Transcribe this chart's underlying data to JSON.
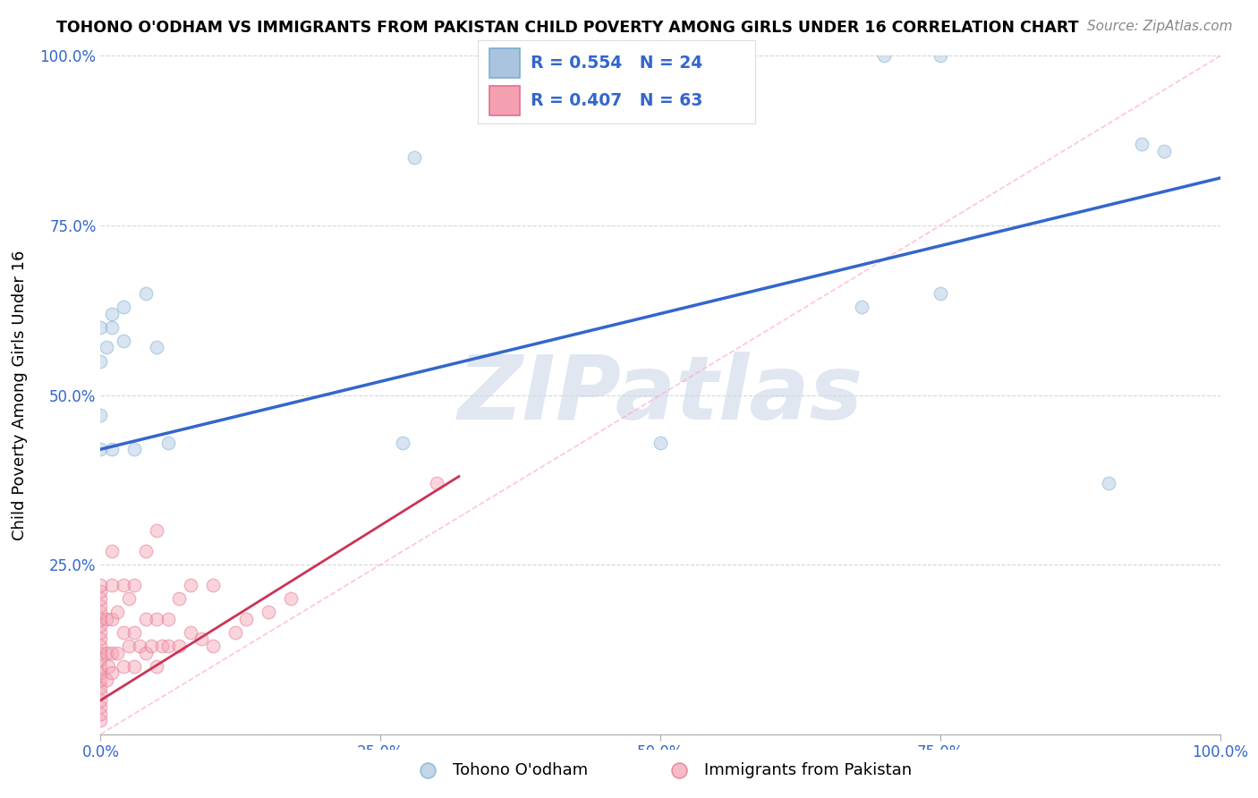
{
  "title": "TOHONO O'ODHAM VS IMMIGRANTS FROM PAKISTAN CHILD POVERTY AMONG GIRLS UNDER 16 CORRELATION CHART",
  "source": "Source: ZipAtlas.com",
  "ylabel": "Child Poverty Among Girls Under 16",
  "background_color": "#ffffff",
  "grid_color": "#cccccc",
  "watermark": "ZIPatlas",
  "tohono_color": "#aac4e0",
  "pakistan_color": "#f4a0b0",
  "tohono_edge": "#7aaed0",
  "pakistan_edge": "#e07090",
  "trend_blue": "#3366cc",
  "trend_pink": "#cc3355",
  "trend_gray": "#cccccc",
  "legend_blue_text": "#3366cc",
  "tick_color": "#3366cc",
  "tohono_R": 0.554,
  "tohono_N": 24,
  "pakistan_R": 0.407,
  "pakistan_N": 63,
  "tohono_points_x": [
    0.0,
    0.0,
    0.0,
    0.0,
    0.005,
    0.01,
    0.01,
    0.01,
    0.02,
    0.02,
    0.03,
    0.04,
    0.05,
    0.06,
    0.27,
    0.28,
    0.5,
    0.68,
    0.7,
    0.75,
    0.75,
    0.9,
    0.93,
    0.95
  ],
  "tohono_points_y": [
    0.42,
    0.47,
    0.55,
    0.6,
    0.57,
    0.6,
    0.62,
    0.42,
    0.58,
    0.63,
    0.42,
    0.65,
    0.57,
    0.43,
    0.43,
    0.85,
    0.43,
    0.63,
    1.0,
    1.0,
    0.65,
    0.37,
    0.87,
    0.86
  ],
  "pakistan_points_x": [
    0.0,
    0.0,
    0.0,
    0.0,
    0.0,
    0.0,
    0.0,
    0.0,
    0.0,
    0.0,
    0.0,
    0.0,
    0.0,
    0.0,
    0.0,
    0.0,
    0.0,
    0.0,
    0.0,
    0.0,
    0.0,
    0.005,
    0.005,
    0.005,
    0.007,
    0.01,
    0.01,
    0.01,
    0.01,
    0.01,
    0.015,
    0.015,
    0.02,
    0.02,
    0.02,
    0.025,
    0.025,
    0.03,
    0.03,
    0.03,
    0.035,
    0.04,
    0.04,
    0.04,
    0.045,
    0.05,
    0.05,
    0.05,
    0.055,
    0.06,
    0.06,
    0.07,
    0.07,
    0.08,
    0.08,
    0.09,
    0.1,
    0.1,
    0.12,
    0.13,
    0.15,
    0.17,
    0.3
  ],
  "pakistan_points_y": [
    0.02,
    0.03,
    0.04,
    0.05,
    0.06,
    0.07,
    0.08,
    0.09,
    0.1,
    0.11,
    0.12,
    0.13,
    0.14,
    0.15,
    0.16,
    0.17,
    0.18,
    0.19,
    0.2,
    0.21,
    0.22,
    0.08,
    0.12,
    0.17,
    0.1,
    0.09,
    0.12,
    0.17,
    0.22,
    0.27,
    0.12,
    0.18,
    0.1,
    0.15,
    0.22,
    0.13,
    0.2,
    0.1,
    0.15,
    0.22,
    0.13,
    0.12,
    0.17,
    0.27,
    0.13,
    0.1,
    0.17,
    0.3,
    0.13,
    0.13,
    0.17,
    0.13,
    0.2,
    0.15,
    0.22,
    0.14,
    0.13,
    0.22,
    0.15,
    0.17,
    0.18,
    0.2,
    0.37
  ],
  "xlim": [
    0.0,
    1.0
  ],
  "ylim": [
    0.0,
    1.0
  ],
  "xticks": [
    0.0,
    0.25,
    0.5,
    0.75,
    1.0
  ],
  "xtick_labels": [
    "0.0%",
    "25.0%",
    "50.0%",
    "75.0%",
    "100.0%"
  ],
  "yticks": [
    0.0,
    0.25,
    0.5,
    0.75,
    1.0
  ],
  "ytick_labels": [
    "",
    "25.0%",
    "50.0%",
    "75.0%",
    "100.0%"
  ],
  "marker_size": 110,
  "marker_alpha": 0.45,
  "legend_label_tohono": "Tohono O'odham",
  "legend_label_pakistan": "Immigrants from Pakistan",
  "blue_trend_x0": 0.0,
  "blue_trend_y0": 0.42,
  "blue_trend_x1": 1.0,
  "blue_trend_y1": 0.82,
  "pink_trend_x0": 0.0,
  "pink_trend_y0": 0.05,
  "pink_trend_x1": 0.32,
  "pink_trend_y1": 0.38
}
